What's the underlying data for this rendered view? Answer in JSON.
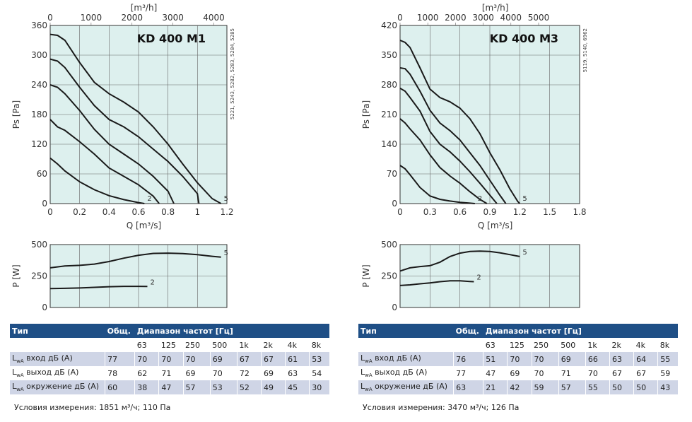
{
  "chart_data": [
    {
      "type": "line",
      "title": "KD 400 M1",
      "model_codes": "5221, 5243, 5282, 5283, 5284, 5285",
      "xlabel": "Q [m³/s]",
      "x2label": "[m³/h]",
      "ylabel": "Ps [Pa]",
      "xlim": [
        0,
        1.2
      ],
      "ylim": [
        0,
        360
      ],
      "x_ticks": [
        "0",
        "0.2",
        "0.4",
        "0.6",
        "0.8",
        "1",
        "1.2"
      ],
      "x2_ticks": [
        "0",
        "1000",
        "2000",
        "3000",
        "4000"
      ],
      "y_ticks": [
        "0",
        "60",
        "120",
        "180",
        "240",
        "300",
        "360"
      ],
      "grid": true,
      "series": [
        {
          "name": "5",
          "x": [
            0,
            0.05,
            0.1,
            0.2,
            0.3,
            0.4,
            0.5,
            0.6,
            0.7,
            0.8,
            0.9,
            1.0,
            1.1,
            1.16
          ],
          "y": [
            342,
            340,
            330,
            285,
            245,
            222,
            205,
            185,
            155,
            120,
            80,
            42,
            10,
            0
          ]
        },
        {
          "name": "",
          "x": [
            0,
            0.05,
            0.1,
            0.2,
            0.3,
            0.4,
            0.5,
            0.6,
            0.7,
            0.8,
            0.9,
            1.0,
            1.01
          ],
          "y": [
            292,
            288,
            275,
            235,
            198,
            170,
            155,
            135,
            110,
            85,
            55,
            20,
            0
          ]
        },
        {
          "name": "",
          "x": [
            0,
            0.05,
            0.1,
            0.2,
            0.3,
            0.4,
            0.5,
            0.6,
            0.7,
            0.8,
            0.84
          ],
          "y": [
            240,
            235,
            222,
            188,
            150,
            120,
            100,
            80,
            55,
            25,
            0
          ]
        },
        {
          "name": "",
          "x": [
            0,
            0.05,
            0.1,
            0.2,
            0.3,
            0.4,
            0.5,
            0.6,
            0.7,
            0.74
          ],
          "y": [
            170,
            155,
            148,
            125,
            100,
            72,
            55,
            38,
            15,
            0
          ]
        },
        {
          "name": "2",
          "x": [
            0,
            0.05,
            0.1,
            0.2,
            0.3,
            0.4,
            0.5,
            0.6,
            0.64
          ],
          "y": [
            92,
            80,
            66,
            44,
            28,
            16,
            8,
            2,
            0
          ]
        },
        {
          "name": "",
          "x": [
            0,
            0.1,
            0.2,
            0.3,
            0.4,
            0.46
          ],
          "y": [
            0,
            0,
            0,
            0,
            0,
            0
          ]
        }
      ],
      "power": {
        "ylabel": "P [W]",
        "ylim": [
          0,
          500
        ],
        "y_ticks": [
          "0",
          "250",
          "500"
        ],
        "series": [
          {
            "name": "5",
            "x": [
              0,
              0.1,
              0.2,
              0.3,
              0.4,
              0.5,
              0.6,
              0.7,
              0.8,
              0.9,
              1.0,
              1.1,
              1.16
            ],
            "y": [
              315,
              330,
              335,
              345,
              365,
              392,
              415,
              430,
              432,
              428,
              420,
              407,
              400
            ]
          },
          {
            "name": "2",
            "x": [
              0,
              0.1,
              0.2,
              0.3,
              0.4,
              0.5,
              0.6,
              0.66
            ],
            "y": [
              150,
              152,
              155,
              160,
              165,
              168,
              168,
              167
            ]
          }
        ]
      }
    },
    {
      "type": "line",
      "title": "KD 400 M3",
      "model_codes": "5119, 5140, 6962",
      "xlabel": "Q [m³/s]",
      "x2label": "[m³/h]",
      "ylabel": "Ps [Pa]",
      "xlim": [
        0,
        1.8
      ],
      "ylim": [
        0,
        420
      ],
      "x_ticks": [
        "0",
        "0.3",
        "0.6",
        "0.9",
        "1.2",
        "1.5",
        "1.8"
      ],
      "x2_ticks": [
        "0",
        "1000",
        "2000",
        "3000",
        "4000",
        "5000"
      ],
      "y_ticks": [
        "0",
        "70",
        "140",
        "210",
        "280",
        "350",
        "420"
      ],
      "grid": true,
      "series": [
        {
          "name": "5",
          "x": [
            0,
            0.05,
            0.1,
            0.2,
            0.3,
            0.4,
            0.5,
            0.6,
            0.7,
            0.8,
            0.9,
            1.0,
            1.1,
            1.18,
            1.2
          ],
          "y": [
            385,
            380,
            368,
            320,
            270,
            250,
            240,
            225,
            200,
            165,
            120,
            80,
            35,
            5,
            0
          ]
        },
        {
          "name": "",
          "x": [
            0,
            0.05,
            0.1,
            0.2,
            0.3,
            0.4,
            0.5,
            0.6,
            0.7,
            0.8,
            0.9,
            1.0,
            1.06
          ],
          "y": [
            320,
            318,
            305,
            265,
            220,
            190,
            172,
            150,
            120,
            90,
            55,
            20,
            0
          ]
        },
        {
          "name": "",
          "x": [
            0,
            0.05,
            0.1,
            0.2,
            0.3,
            0.4,
            0.5,
            0.6,
            0.7,
            0.8,
            0.9,
            0.97
          ],
          "y": [
            272,
            265,
            250,
            218,
            170,
            140,
            122,
            100,
            75,
            48,
            20,
            0
          ]
        },
        {
          "name": "",
          "x": [
            0,
            0.05,
            0.1,
            0.2,
            0.3,
            0.4,
            0.5,
            0.6,
            0.7,
            0.8,
            0.87
          ],
          "y": [
            200,
            190,
            176,
            150,
            115,
            85,
            65,
            48,
            28,
            10,
            0
          ]
        },
        {
          "name": "2",
          "x": [
            0,
            0.05,
            0.1,
            0.2,
            0.3,
            0.4,
            0.5,
            0.6,
            0.7,
            0.75
          ],
          "y": [
            90,
            82,
            68,
            38,
            18,
            10,
            6,
            3,
            1,
            0
          ]
        },
        {
          "name": "",
          "x": [
            0,
            0.1,
            0.2,
            0.3,
            0.4,
            0.47
          ],
          "y": [
            0,
            0,
            0,
            0,
            0,
            0
          ]
        }
      ],
      "power": {
        "ylabel": "P [W]",
        "ylim": [
          0,
          500
        ],
        "y_ticks": [
          "0",
          "250",
          "500"
        ],
        "series": [
          {
            "name": "5",
            "x": [
              0,
              0.1,
              0.2,
              0.3,
              0.4,
              0.5,
              0.6,
              0.7,
              0.8,
              0.9,
              1.0,
              1.1,
              1.2
            ],
            "y": [
              290,
              315,
              325,
              332,
              360,
              405,
              432,
              445,
              448,
              445,
              435,
              420,
              405
            ]
          },
          {
            "name": "2",
            "x": [
              0,
              0.1,
              0.2,
              0.3,
              0.4,
              0.5,
              0.6,
              0.7,
              0.74
            ],
            "y": [
              175,
              180,
              188,
              195,
              205,
              212,
              212,
              207,
              205
            ]
          }
        ]
      }
    }
  ],
  "tables": [
    {
      "header": {
        "type": "Тип",
        "total": "Общ.",
        "range": "Диапазон частот [Гц]"
      },
      "freqs": [
        "63",
        "125",
        "250",
        "500",
        "1k",
        "2k",
        "4k",
        "8k"
      ],
      "rows": [
        {
          "label": "L",
          "sub": "wA",
          "label_rest": " вход дБ (А)",
          "total": "77",
          "values": [
            "70",
            "70",
            "70",
            "69",
            "67",
            "67",
            "61",
            "53"
          ]
        },
        {
          "label": "L",
          "sub": "wA",
          "label_rest": " выход дБ (А)",
          "total": "78",
          "values": [
            "62",
            "71",
            "69",
            "70",
            "72",
            "69",
            "63",
            "54"
          ]
        },
        {
          "label": "L",
          "sub": "wA",
          "label_rest": " окружение дБ (А)",
          "total": "60",
          "values": [
            "38",
            "47",
            "57",
            "53",
            "52",
            "49",
            "45",
            "30"
          ]
        }
      ],
      "conditions": "Условия измерения: 1851 м³/ч; 110 Па"
    },
    {
      "header": {
        "type": "Тип",
        "total": "Общ.",
        "range": "Диапазон частот [Гц]"
      },
      "freqs": [
        "63",
        "125",
        "250",
        "500",
        "1k",
        "2k",
        "4k",
        "8k"
      ],
      "rows": [
        {
          "label": "L",
          "sub": "wA",
          "label_rest": " вход дБ (А)",
          "total": "76",
          "values": [
            "51",
            "70",
            "70",
            "69",
            "66",
            "63",
            "64",
            "55"
          ]
        },
        {
          "label": "L",
          "sub": "wA",
          "label_rest": " выход дБ (А)",
          "total": "77",
          "values": [
            "47",
            "69",
            "70",
            "71",
            "70",
            "67",
            "67",
            "59"
          ]
        },
        {
          "label": "L",
          "sub": "wA",
          "label_rest": " окружение дБ (А)",
          "total": "63",
          "values": [
            "21",
            "42",
            "59",
            "57",
            "55",
            "50",
            "50",
            "43"
          ]
        }
      ],
      "conditions": "Условия измерения: 3470 м³/ч; 126 Па"
    }
  ]
}
